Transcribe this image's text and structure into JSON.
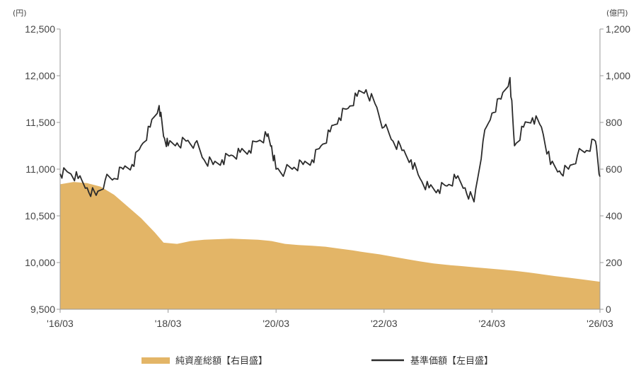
{
  "chart_data": {
    "type": "line+area",
    "left_axis": {
      "unit": "(円)",
      "ticks": [
        "12,500",
        "12,000",
        "11,500",
        "11,000",
        "10,500",
        "10,000",
        "9,500"
      ],
      "range": [
        9500,
        12500
      ]
    },
    "right_axis": {
      "unit": "(億円)",
      "ticks": [
        "1,200",
        "1,000",
        "800",
        "600",
        "400",
        "200",
        "0"
      ],
      "range": [
        0,
        1200
      ]
    },
    "x_ticks": [
      "'16/03",
      "'18/03",
      "'20/03",
      "'22/03",
      "'24/03",
      "'26/03"
    ],
    "x_range": [
      "2016-03",
      "2026-03"
    ],
    "colors": {
      "nav": "#2b2b2b",
      "assets": "#e3b567",
      "axis": "#999999"
    },
    "series": [
      {
        "name": "基準価額【左目盛】",
        "axis": "left",
        "kind": "line",
        "points": [
          [
            "2016-03",
            10950
          ],
          [
            "2016-05",
            10960
          ],
          [
            "2016-07",
            10900
          ],
          [
            "2016-09",
            10800
          ],
          [
            "2016-11",
            10720
          ],
          [
            "2017-01",
            10880
          ],
          [
            "2017-03",
            10900
          ],
          [
            "2017-05",
            11000
          ],
          [
            "2017-07",
            11050
          ],
          [
            "2017-09",
            11250
          ],
          [
            "2017-11",
            11450
          ],
          [
            "2018-01",
            11680
          ],
          [
            "2018-02",
            11350
          ],
          [
            "2018-03",
            11250
          ],
          [
            "2018-05",
            11280
          ],
          [
            "2018-07",
            11300
          ],
          [
            "2018-09",
            11280
          ],
          [
            "2018-11",
            11100
          ],
          [
            "2019-01",
            11050
          ],
          [
            "2019-03",
            11100
          ],
          [
            "2019-05",
            11150
          ],
          [
            "2019-07",
            11180
          ],
          [
            "2019-09",
            11200
          ],
          [
            "2019-11",
            11300
          ],
          [
            "2020-01",
            11350
          ],
          [
            "2020-02",
            11250
          ],
          [
            "2020-03",
            11000
          ],
          [
            "2020-05",
            10980
          ],
          [
            "2020-07",
            11020
          ],
          [
            "2020-09",
            11050
          ],
          [
            "2020-11",
            11100
          ],
          [
            "2021-01",
            11250
          ],
          [
            "2021-03",
            11400
          ],
          [
            "2021-05",
            11550
          ],
          [
            "2021-07",
            11650
          ],
          [
            "2021-09",
            11780
          ],
          [
            "2021-11",
            11850
          ],
          [
            "2022-01",
            11700
          ],
          [
            "2022-03",
            11450
          ],
          [
            "2022-05",
            11300
          ],
          [
            "2022-07",
            11200
          ],
          [
            "2022-09",
            11100
          ],
          [
            "2022-11",
            10900
          ],
          [
            "2023-01",
            10800
          ],
          [
            "2023-03",
            10780
          ],
          [
            "2023-05",
            10820
          ],
          [
            "2023-07",
            10900
          ],
          [
            "2023-09",
            10800
          ],
          [
            "2023-11",
            10650
          ],
          [
            "2024-01",
            11300
          ],
          [
            "2024-03",
            11600
          ],
          [
            "2024-05",
            11750
          ],
          [
            "2024-07",
            11980
          ],
          [
            "2024-08",
            11250
          ],
          [
            "2024-10",
            11450
          ],
          [
            "2024-12",
            11550
          ],
          [
            "2025-02",
            11450
          ],
          [
            "2025-04",
            11050
          ],
          [
            "2025-06",
            10980
          ],
          [
            "2025-08",
            11000
          ],
          [
            "2025-10",
            11150
          ],
          [
            "2025-12",
            11200
          ],
          [
            "2026-02",
            11300
          ],
          [
            "2026-03",
            10920
          ]
        ]
      },
      {
        "name": "純資産総額【右目盛】",
        "axis": "right",
        "kind": "area",
        "points": [
          [
            "2016-03",
            535
          ],
          [
            "2016-06",
            545
          ],
          [
            "2016-09",
            540
          ],
          [
            "2016-12",
            525
          ],
          [
            "2017-03",
            490
          ],
          [
            "2017-06",
            440
          ],
          [
            "2017-09",
            390
          ],
          [
            "2017-12",
            330
          ],
          [
            "2018-02",
            285
          ],
          [
            "2018-05",
            280
          ],
          [
            "2018-08",
            292
          ],
          [
            "2018-11",
            298
          ],
          [
            "2019-02",
            300
          ],
          [
            "2019-05",
            302
          ],
          [
            "2019-08",
            300
          ],
          [
            "2019-11",
            298
          ],
          [
            "2020-02",
            292
          ],
          [
            "2020-05",
            280
          ],
          [
            "2020-08",
            275
          ],
          [
            "2020-11",
            272
          ],
          [
            "2021-02",
            268
          ],
          [
            "2021-05",
            260
          ],
          [
            "2021-08",
            252
          ],
          [
            "2021-11",
            243
          ],
          [
            "2022-02",
            235
          ],
          [
            "2022-05",
            225
          ],
          [
            "2022-08",
            215
          ],
          [
            "2022-11",
            205
          ],
          [
            "2023-02",
            196
          ],
          [
            "2023-05",
            190
          ],
          [
            "2023-08",
            185
          ],
          [
            "2023-11",
            180
          ],
          [
            "2024-02",
            175
          ],
          [
            "2024-05",
            170
          ],
          [
            "2024-08",
            165
          ],
          [
            "2024-11",
            158
          ],
          [
            "2025-02",
            150
          ],
          [
            "2025-05",
            142
          ],
          [
            "2025-08",
            135
          ],
          [
            "2025-11",
            128
          ],
          [
            "2026-03",
            118
          ]
        ]
      }
    ],
    "legend": [
      {
        "label": "純資産総額【右目盛】",
        "kind": "area"
      },
      {
        "label": "基準価額【左目盛】",
        "kind": "line"
      }
    ]
  }
}
